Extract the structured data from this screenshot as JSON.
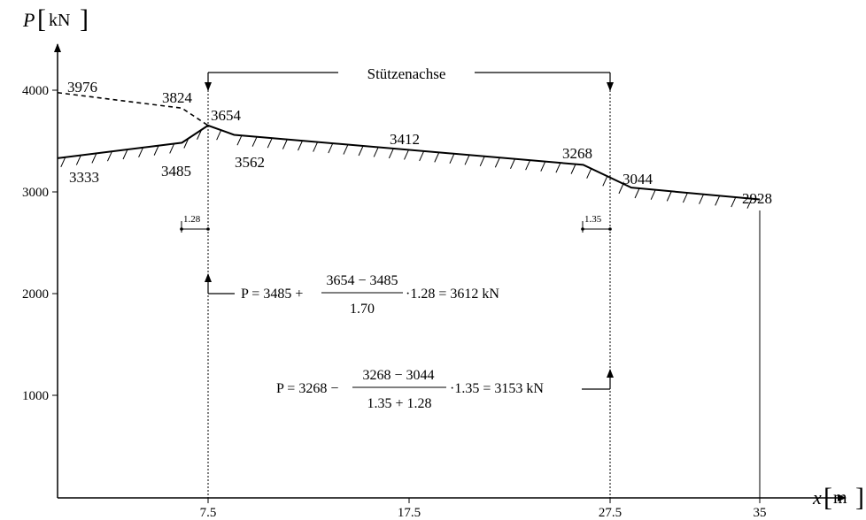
{
  "axes": {
    "y_label": "P",
    "y_unit": "kN",
    "x_label": "x",
    "x_unit": "m",
    "y_ticks": [
      "1000",
      "2000",
      "3000",
      "4000"
    ],
    "x_ticks": [
      "7.5",
      "17.5",
      "27.5",
      "35"
    ]
  },
  "column_axis_label": "Stützenachse",
  "force_profile": {
    "points": [
      {
        "x": 0,
        "p": 3333
      },
      {
        "x": 6.2,
        "p": 3485
      },
      {
        "x": 7.5,
        "p": 3654
      },
      {
        "x": 8.8,
        "p": 3562
      },
      {
        "x": 26.2,
        "p": 3268
      },
      {
        "x": 28.6,
        "p": 3044
      },
      {
        "x": 35,
        "p": 2928
      }
    ],
    "dashed_points": [
      {
        "x": 0,
        "p": 3976
      },
      {
        "x": 6.2,
        "p": 3824
      },
      {
        "x": 7.5,
        "p": 3654
      }
    ]
  },
  "value_labels": [
    "3976",
    "3824",
    "3654",
    "3333",
    "3485",
    "3562",
    "3412",
    "3268",
    "3044",
    "2928"
  ],
  "distance_labels": {
    "left": "1.28",
    "right": "1.35"
  },
  "formula_1": {
    "lhs": "P = 3485 +",
    "numerator": "3654 − 3485",
    "denominator": "1.70",
    "rhs": "·1.28 = 3612 kN"
  },
  "formula_2": {
    "lhs": "P = 3268 −",
    "numerator": "3268 − 3044",
    "denominator": "1.35 + 1.28",
    "rhs": "·1.35 = 3153 kN"
  }
}
